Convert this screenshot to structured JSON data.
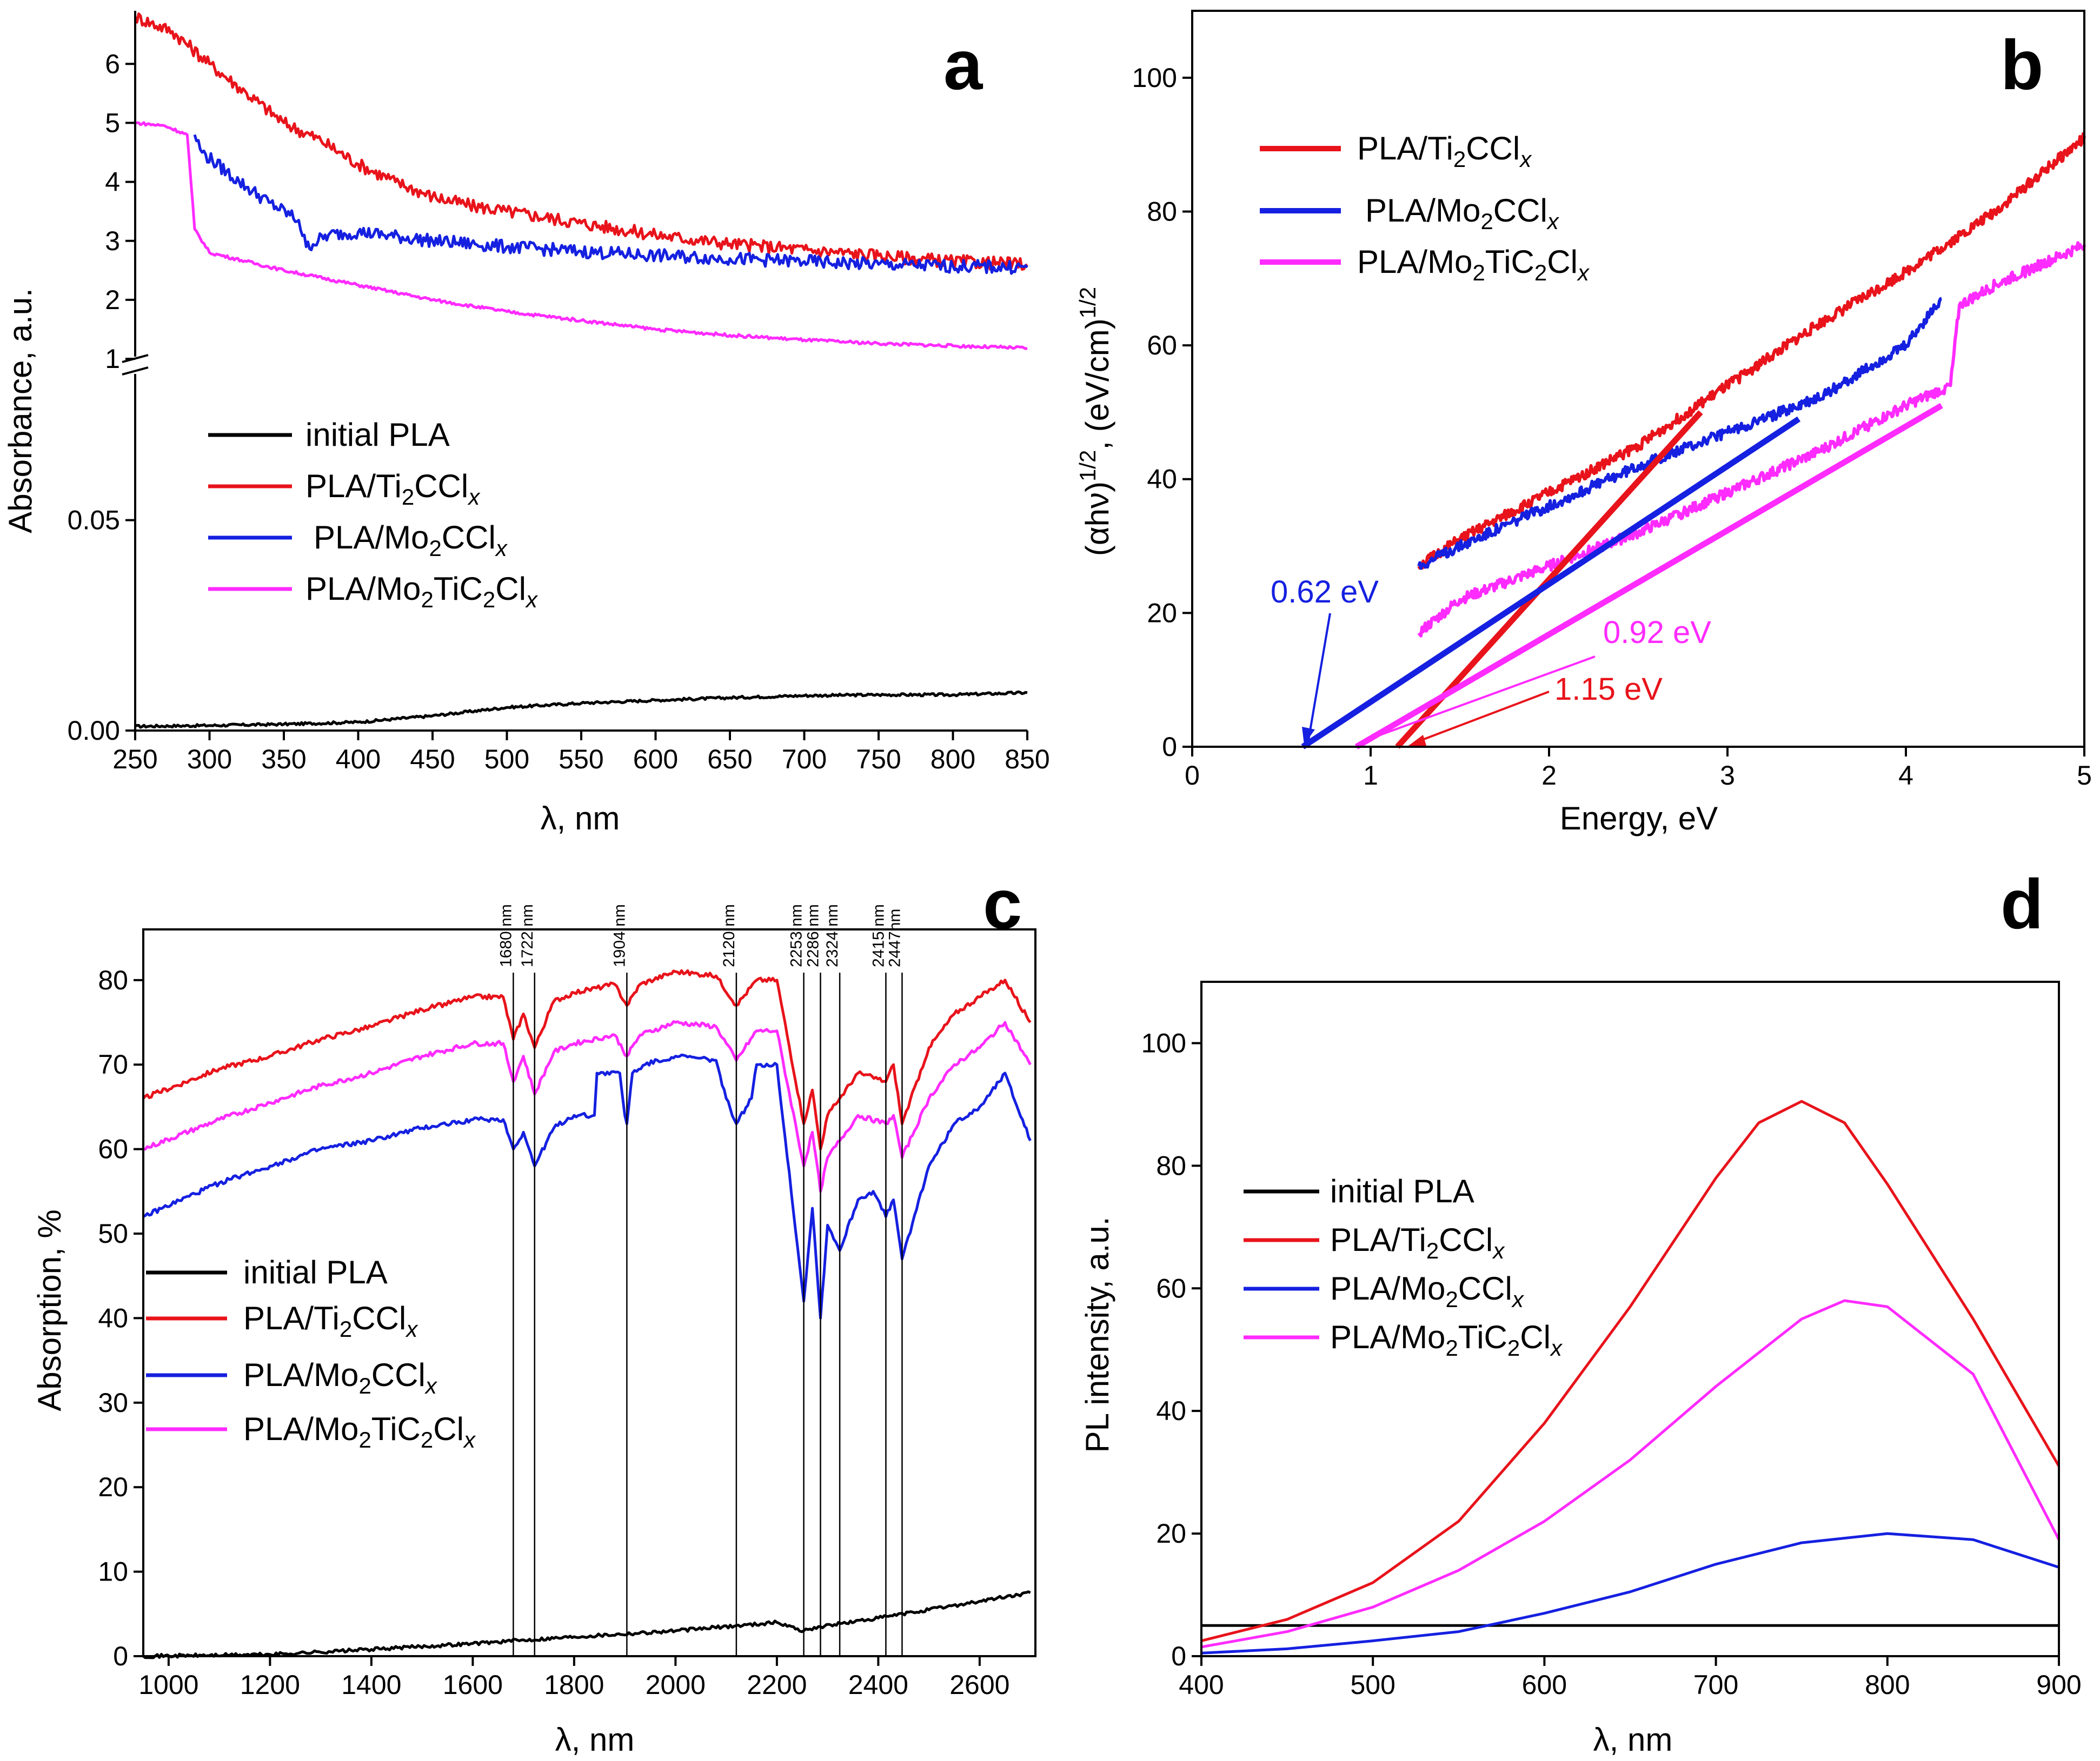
{
  "figure": {
    "colors": {
      "initial": "#000000",
      "ti2ccl": "#e8131b",
      "mo2ccl": "#1520e0",
      "mo2ticcl": "#ff2bff"
    }
  },
  "chart_data": [
    {
      "id": "a",
      "type": "line",
      "panel_label": "a",
      "xlabel": "λ, nm",
      "ylabel": "Absorbance, a.u.",
      "xlim": [
        250,
        850
      ],
      "x_ticks": [
        250,
        300,
        350,
        400,
        450,
        500,
        550,
        600,
        650,
        700,
        750,
        800,
        850
      ],
      "y_axis_break": true,
      "lower_segment": {
        "ylim": [
          0,
          0.085
        ],
        "ticks": [
          0.0,
          0.05
        ],
        "tick_labels": [
          "0.00",
          "0.05"
        ]
      },
      "upper_segment": {
        "ylim": [
          0.9,
          6.9
        ],
        "ticks": [
          1,
          2,
          3,
          4,
          5,
          6
        ],
        "tick_labels": [
          "1",
          "2",
          "3",
          "4",
          "5",
          "6"
        ]
      },
      "legend": [
        "initial PLA",
        "PLA/Ti2CClx",
        "PLA/Mo2CClx",
        "PLA/Mo2TiC2Clx"
      ],
      "series": [
        {
          "name": "initial PLA",
          "segment": "lower",
          "x": [
            250,
            300,
            350,
            400,
            450,
            500,
            550,
            600,
            650,
            700,
            750,
            800,
            850
          ],
          "y": [
            0.001,
            0.0012,
            0.0015,
            0.002,
            0.0035,
            0.0055,
            0.0065,
            0.0072,
            0.0078,
            0.0083,
            0.0085,
            0.0085,
            0.009
          ]
        },
        {
          "name": "PLA/Ti2CClx",
          "segment": "upper",
          "x": [
            250,
            275,
            300,
            325,
            350,
            375,
            400,
            425,
            450,
            475,
            500,
            550,
            600,
            650,
            700,
            750,
            800,
            850
          ],
          "y": [
            6.8,
            6.55,
            6.0,
            5.5,
            5.0,
            4.7,
            4.3,
            4.0,
            3.75,
            3.6,
            3.5,
            3.3,
            3.1,
            2.95,
            2.85,
            2.75,
            2.65,
            2.6
          ]
        },
        {
          "name": "PLA/Mo2CClx",
          "segment": "upper",
          "x": [
            290,
            295,
            320,
            340,
            360,
            365,
            380,
            400,
            450,
            500,
            550,
            600,
            650,
            700,
            750,
            800,
            850
          ],
          "y": [
            4.8,
            4.5,
            4.0,
            3.65,
            3.35,
            2.9,
            3.1,
            3.15,
            3.0,
            2.9,
            2.82,
            2.75,
            2.7,
            2.65,
            2.6,
            2.57,
            2.55
          ]
        },
        {
          "name": "PLA/Mo2TiC2Clx",
          "segment": "upper",
          "x": [
            250,
            270,
            285,
            290,
            300,
            325,
            350,
            400,
            450,
            500,
            550,
            600,
            650,
            700,
            750,
            800,
            850
          ],
          "y": [
            5.0,
            4.95,
            4.8,
            3.2,
            2.8,
            2.65,
            2.5,
            2.25,
            2.0,
            1.8,
            1.65,
            1.5,
            1.4,
            1.32,
            1.26,
            1.22,
            1.18
          ]
        }
      ]
    },
    {
      "id": "b",
      "type": "line",
      "panel_label": "b",
      "xlabel": "Energy, eV",
      "ylabel": "(αhν)^1/2, (eV/cm)^1/2",
      "xlim": [
        0,
        5
      ],
      "ylim": [
        0,
        110
      ],
      "x_ticks": [
        0,
        1,
        2,
        3,
        4,
        5
      ],
      "y_ticks": [
        0,
        20,
        40,
        60,
        80,
        100
      ],
      "legend": [
        "PLA/Ti2CClx",
        "PLA/Mo2CClx",
        "PLA/Mo2TiC2Clx"
      ],
      "annotations": [
        "0.62 eV",
        "0.92 eV",
        "1.15 eV"
      ],
      "series": [
        {
          "name": "PLA/Ti2CClx",
          "x": [
            1.27,
            1.5,
            2.0,
            2.5,
            3.0,
            3.5,
            4.0,
            4.5,
            5.0
          ],
          "y": [
            27,
            31,
            38,
            45,
            54,
            63,
            71,
            80,
            91
          ]
        },
        {
          "name": "PLA/Mo2CClx",
          "x": [
            1.27,
            1.5,
            2.0,
            2.5,
            3.0,
            3.5,
            4.0,
            4.2
          ],
          "y": [
            27,
            30,
            36,
            42,
            47,
            52,
            60,
            67
          ]
        },
        {
          "name": "PLA/Mo2TiC2Clx",
          "x": [
            1.27,
            1.5,
            2.0,
            2.5,
            3.0,
            3.5,
            4.0,
            4.25,
            4.3,
            4.5,
            5.0
          ],
          "y": [
            17,
            22,
            27,
            32,
            38,
            44,
            51,
            54,
            66,
            69,
            75
          ]
        }
      ],
      "fits": [
        {
          "name": "PLA/Ti2CClx",
          "x": [
            1.15,
            2.85
          ],
          "y": [
            0,
            50
          ]
        },
        {
          "name": "PLA/Mo2CClx",
          "x": [
            0.62,
            3.4
          ],
          "y": [
            0,
            49
          ]
        },
        {
          "name": "PLA/Mo2TiC2Clx",
          "x": [
            0.92,
            4.2
          ],
          "y": [
            0,
            51
          ]
        }
      ]
    },
    {
      "id": "c",
      "type": "line",
      "panel_label": "c",
      "xlabel": "λ, nm",
      "ylabel": "Absorption, %",
      "xlim": [
        950,
        2710
      ],
      "ylim": [
        0,
        86
      ],
      "x_ticks": [
        1000,
        1200,
        1400,
        1600,
        1800,
        2000,
        2200,
        2400,
        2600
      ],
      "y_ticks": [
        0,
        10,
        20,
        30,
        40,
        50,
        60,
        70,
        80
      ],
      "peak_lines_nm": [
        1680,
        1722,
        1904,
        2120,
        2253,
        2286,
        2324,
        2415,
        2447
      ],
      "peak_labels": [
        "1680 nm",
        "1722 nm",
        "1904 nm",
        "2120 nm",
        "2253 nm",
        "2286 nm",
        "2324 nm",
        "2415 nm",
        "2447nm"
      ],
      "legend": [
        "initial PLA",
        "PLA/Ti2CClx",
        "PLA/Mo2CClx",
        "PLA/Mo2TiC2Clx"
      ],
      "series": [
        {
          "name": "initial PLA",
          "x": [
            950,
            1200,
            1400,
            1600,
            1800,
            2000,
            2200,
            2253,
            2286,
            2400,
            2600,
            2700
          ],
          "y": [
            0,
            0.2,
            0.8,
            1.5,
            2.3,
            3.0,
            4.0,
            3.0,
            3.5,
            4.5,
            6.5,
            7.5
          ]
        },
        {
          "name": "PLA/Ti2CClx",
          "x": [
            950,
            1100,
            1200,
            1300,
            1400,
            1500,
            1600,
            1660,
            1680,
            1700,
            1722,
            1760,
            1800,
            1880,
            1904,
            1930,
            2000,
            2080,
            2120,
            2160,
            2200,
            2253,
            2270,
            2286,
            2300,
            2324,
            2360,
            2415,
            2430,
            2447,
            2500,
            2550,
            2600,
            2650,
            2700
          ],
          "y": [
            66,
            69.5,
            71,
            73,
            74.5,
            76.5,
            78,
            78,
            73,
            76,
            72,
            77.5,
            78.5,
            79.5,
            77,
            79.5,
            81,
            80.5,
            77,
            80,
            80,
            63,
            67,
            60,
            64,
            66,
            69,
            68,
            70,
            63,
            72,
            76,
            78,
            80,
            75
          ]
        },
        {
          "name": "PLA/Mo2CClx",
          "x": [
            950,
            1100,
            1200,
            1300,
            1400,
            1500,
            1600,
            1660,
            1680,
            1700,
            1722,
            1760,
            1800,
            1840,
            1845,
            1890,
            1900,
            1904,
            1915,
            1940,
            2000,
            2080,
            2100,
            2120,
            2150,
            2160,
            2200,
            2253,
            2270,
            2286,
            2300,
            2324,
            2360,
            2390,
            2415,
            2430,
            2447,
            2500,
            2550,
            2600,
            2650,
            2700
          ],
          "y": [
            52,
            56,
            58,
            60,
            61,
            62.5,
            63.5,
            63.5,
            60,
            62,
            58,
            62.5,
            64,
            64,
            69,
            69,
            64,
            63,
            69,
            70,
            71,
            70.5,
            66,
            63,
            66,
            70,
            70,
            42,
            53,
            40,
            51,
            48,
            54,
            55,
            52,
            54,
            47,
            58,
            63,
            65,
            69,
            61
          ]
        },
        {
          "name": "PLA/Mo2TiC2Clx",
          "x": [
            950,
            1100,
            1200,
            1300,
            1400,
            1500,
            1600,
            1660,
            1680,
            1700,
            1722,
            1760,
            1800,
            1880,
            1904,
            1930,
            2000,
            2080,
            2120,
            2160,
            2200,
            2253,
            2270,
            2286,
            2300,
            2324,
            2360,
            2415,
            2430,
            2447,
            2500,
            2550,
            2600,
            2650,
            2700
          ],
          "y": [
            60,
            63.5,
            65.5,
            67.5,
            69,
            71,
            72.5,
            72.5,
            68,
            71,
            66.5,
            71.5,
            72.5,
            73.5,
            71,
            73.5,
            75,
            74.5,
            70.5,
            74,
            74,
            58,
            62,
            55,
            59,
            61,
            64,
            63,
            64,
            59,
            66,
            70,
            72,
            75,
            70
          ]
        }
      ]
    },
    {
      "id": "d",
      "type": "line",
      "panel_label": "d",
      "xlabel": "λ, nm",
      "ylabel": "PL intensity, a.u.",
      "xlim": [
        400,
        900
      ],
      "ylim": [
        0,
        110
      ],
      "x_ticks": [
        400,
        500,
        600,
        700,
        800,
        900
      ],
      "y_ticks": [
        0,
        20,
        40,
        60,
        80,
        100
      ],
      "legend": [
        "initial PLA",
        "PLA/Ti2CClx",
        "PLA/Mo2CClx",
        "PLA/Mo2TiC2Clx"
      ],
      "series": [
        {
          "name": "initial PLA",
          "x": [
            400,
            900
          ],
          "y": [
            5,
            5
          ]
        },
        {
          "name": "PLA/Ti2CClx",
          "x": [
            400,
            450,
            500,
            550,
            600,
            650,
            700,
            725,
            750,
            775,
            800,
            850,
            900
          ],
          "y": [
            2.5,
            6,
            12,
            22,
            38,
            57,
            78,
            87,
            90.5,
            87,
            77,
            55,
            31
          ]
        },
        {
          "name": "PLA/Mo2CClx",
          "x": [
            400,
            450,
            500,
            550,
            600,
            650,
            700,
            750,
            800,
            850,
            900
          ],
          "y": [
            0.5,
            1.2,
            2.5,
            4,
            7,
            10.5,
            15,
            18.5,
            20,
            19,
            14.5
          ]
        },
        {
          "name": "PLA/Mo2TiC2Clx",
          "x": [
            400,
            450,
            500,
            550,
            600,
            650,
            700,
            750,
            775,
            800,
            850,
            900
          ],
          "y": [
            1.5,
            4,
            8,
            14,
            22,
            32,
            44,
            55,
            58,
            57,
            46,
            19
          ]
        }
      ]
    }
  ]
}
